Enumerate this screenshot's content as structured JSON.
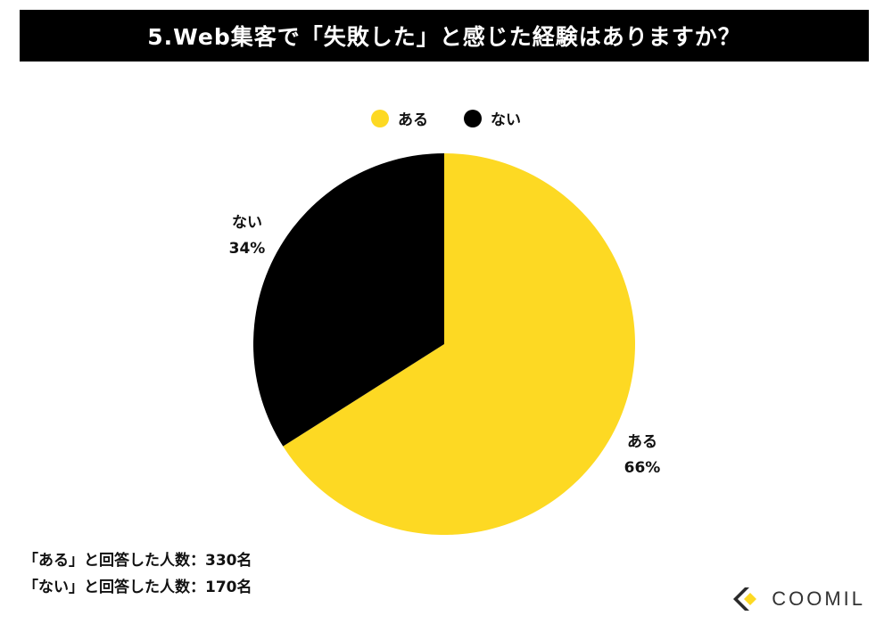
{
  "header": {
    "title": "5.Web集客で「失敗した」と感じた経験はありますか？"
  },
  "chart_data": {
    "type": "pie",
    "title": "5.Web集客で「失敗した」と感じた経験はありますか？",
    "labels": [
      "ある",
      "ない"
    ],
    "values": [
      66,
      34
    ],
    "colors": [
      "#fdd923",
      "#000000"
    ],
    "legend_position": "top-center",
    "slice_labels": [
      "66%",
      "34%"
    ]
  },
  "notes": [
    "「ある」と回答した人数：330名",
    "「ない」と回答した人数：170名"
  ],
  "brand": {
    "name": "COOMIL",
    "accent": "#fdd923"
  }
}
